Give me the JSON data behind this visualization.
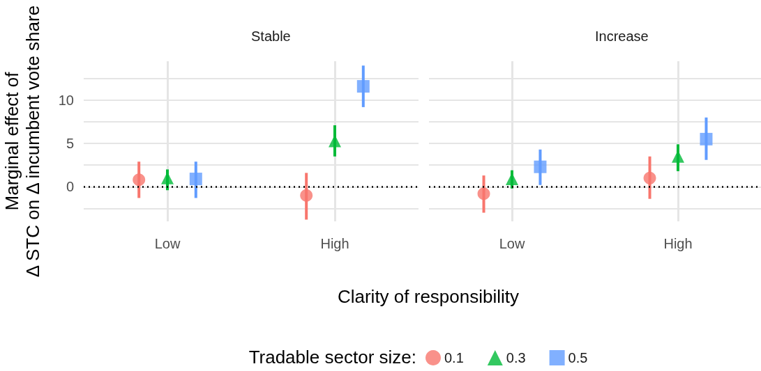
{
  "chart_data": [
    {
      "type": "scatter",
      "title": "Stable",
      "xlabel": "Clarity of responsibility",
      "ylabel": "Marginal effect of\nΔ STC on Δ incumbent vote share",
      "legend_title": "Tradable sector size:",
      "legend": "bottom",
      "grid": true,
      "categories": [
        "Low",
        "High"
      ],
      "series": [
        {
          "name": "0.1",
          "color": "#f8766d",
          "marker": "circle",
          "values": [
            0.8,
            -1.0
          ],
          "errors": [
            [
              -1.3,
              2.9
            ],
            [
              -3.8,
              1.6
            ]
          ]
        },
        {
          "name": "0.3",
          "color": "#00ba38",
          "marker": "triangle",
          "values": [
            1.0,
            5.3
          ],
          "errors": [
            [
              -0.4,
              2.0
            ],
            [
              3.5,
              7.1
            ]
          ]
        },
        {
          "name": "0.5",
          "color": "#619cff",
          "marker": "square",
          "values": [
            0.9,
            11.6
          ],
          "errors": [
            [
              -1.3,
              2.9
            ],
            [
              9.2,
              14.0
            ]
          ]
        }
      ],
      "ylim": [
        -4,
        14.5
      ],
      "yticks": [
        {
          "value": -2.5,
          "label": null
        },
        0,
        {
          "value": 2.5,
          "label": null
        },
        5,
        {
          "value": 7.5,
          "label": null
        },
        10,
        {
          "value": 12.5,
          "label": null
        }
      ],
      "ref_lines": [
        {
          "axis": "y",
          "value": 0,
          "color": "#000000",
          "line_style": "dotted"
        }
      ]
    },
    {
      "type": "scatter",
      "title": "Increase",
      "grid": true,
      "tick_labels": "x",
      "categories": [
        "Low",
        "High"
      ],
      "series": [
        {
          "name": "0.1",
          "color": "#f8766d",
          "marker": "circle",
          "values": [
            -0.8,
            1.0
          ],
          "errors": [
            [
              -3.0,
              1.3
            ],
            [
              -1.4,
              3.5
            ]
          ]
        },
        {
          "name": "0.3",
          "color": "#00ba38",
          "marker": "triangle",
          "values": [
            0.9,
            3.5
          ],
          "errors": [
            [
              -0.2,
              1.9
            ],
            [
              1.8,
              4.9
            ]
          ]
        },
        {
          "name": "0.5",
          "color": "#619cff",
          "marker": "square",
          "values": [
            2.3,
            5.5
          ],
          "errors": [
            [
              0.2,
              4.3
            ],
            [
              3.1,
              8.0
            ]
          ]
        }
      ],
      "ylim": [
        -4,
        14.5
      ],
      "yticks": [
        {
          "value": -2.5,
          "label": null
        },
        0,
        {
          "value": 2.5,
          "label": null
        },
        5,
        {
          "value": 7.5,
          "label": null
        },
        10,
        {
          "value": 12.5,
          "label": null
        }
      ],
      "ref_lines": [
        {
          "axis": "y",
          "value": 0,
          "color": "#000000",
          "line_style": "dotted"
        }
      ]
    }
  ]
}
